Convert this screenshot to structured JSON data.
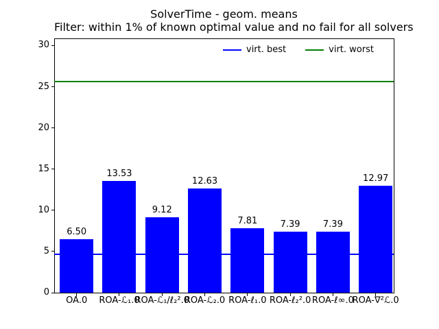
{
  "chart_data": {
    "type": "bar",
    "title": "SolverTime - geom. means",
    "subtitle": "Filter: within 1% of known optimal value and no fail for all solvers",
    "categories": [
      "OA.0",
      "ROA-ℒ₁.0",
      "ROA-ℒ₁/ℓ₂².0",
      "ROA-ℒ₂.0",
      "ROA-ℓ₁.0",
      "ROA-ℓ₂².0",
      "ROA-ℓ∞.0",
      "ROA-∇²ℒ.0"
    ],
    "values": [
      6.5,
      13.53,
      9.12,
      12.63,
      7.81,
      7.39,
      7.39,
      12.97
    ],
    "bar_labels": [
      "6.50",
      "13.53",
      "9.12",
      "12.63",
      "7.81",
      "7.39",
      "7.39",
      "12.97"
    ],
    "bar_color": "#0000ff",
    "xlabel": "",
    "ylabel": "",
    "yticks": [
      0,
      5,
      10,
      15,
      20,
      25,
      30
    ],
    "ylim": [
      0,
      30.87
    ],
    "grid": false,
    "hlines": [
      {
        "name": "virt. best",
        "value": 4.7,
        "color": "#0000ff"
      },
      {
        "name": "virt. worst",
        "value": 25.6,
        "color": "#008000"
      }
    ],
    "legend": {
      "position": "upper center inside, no frame",
      "entries": [
        {
          "label": "virt. best",
          "color": "#0000ff"
        },
        {
          "label": "virt. worst",
          "color": "#008000"
        }
      ]
    }
  }
}
